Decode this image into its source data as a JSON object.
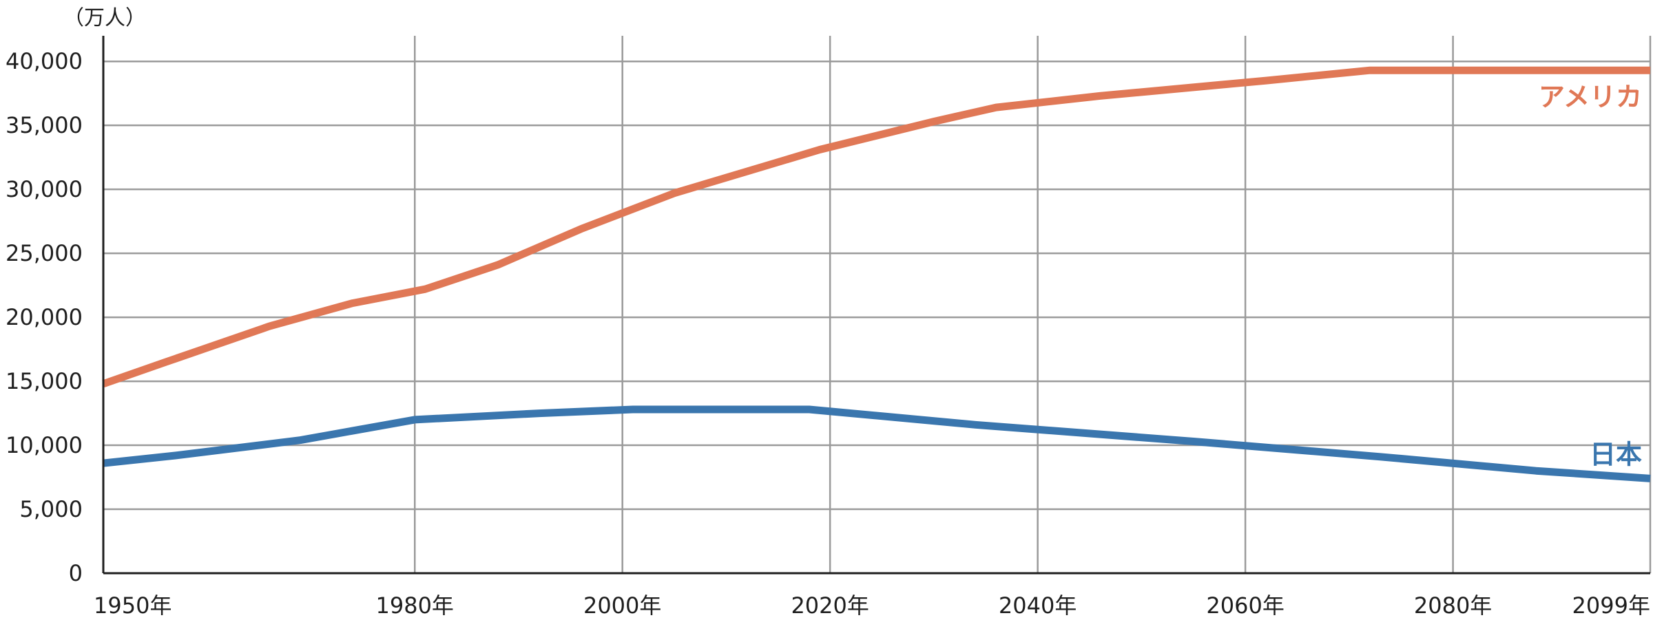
{
  "chart_data": {
    "type": "line",
    "unit_label": "（万人）",
    "x_tick_labels": [
      {
        "year": 1950,
        "label": "1950年"
      },
      {
        "year": 1980,
        "label": "1980年"
      },
      {
        "year": 2000,
        "label": "2000年"
      },
      {
        "year": 2020,
        "label": "2020年"
      },
      {
        "year": 2040,
        "label": "2040年"
      },
      {
        "year": 2060,
        "label": "2060年"
      },
      {
        "year": 2080,
        "label": "2080年"
      },
      {
        "year": 2099,
        "label": "2099年"
      }
    ],
    "xlim": [
      1950,
      2099
    ],
    "ylim": [
      0,
      42000
    ],
    "y_ticks": [
      0,
      5000,
      10000,
      15000,
      20000,
      25000,
      30000,
      35000,
      40000
    ],
    "y_tick_labels": [
      "0",
      "5,000",
      "10,000",
      "15,000",
      "20,000",
      "25,000",
      "30,000",
      "35,000",
      "40,000"
    ],
    "grid": true,
    "series": [
      {
        "name": "アメリカ",
        "color": "#e07856",
        "x": [
          1950,
          1956,
          1966,
          1974,
          1981,
          1988,
          1996,
          2005,
          2019,
          2030,
          2036,
          2046,
          2062,
          2072,
          2080,
          2099
        ],
        "values": [
          14800,
          16500,
          19300,
          21100,
          22200,
          24100,
          26900,
          29700,
          33100,
          35300,
          36400,
          37300,
          38500,
          39300,
          39300,
          39300
        ]
      },
      {
        "name": "日本",
        "color": "#3a76ae",
        "x": [
          1950,
          1957,
          1969,
          1980,
          1992,
          2001,
          2018,
          2034,
          2055,
          2073,
          2088,
          2099
        ],
        "values": [
          8600,
          9200,
          10400,
          12000,
          12500,
          12800,
          12800,
          11600,
          10300,
          9100,
          8000,
          7400
        ]
      }
    ]
  }
}
